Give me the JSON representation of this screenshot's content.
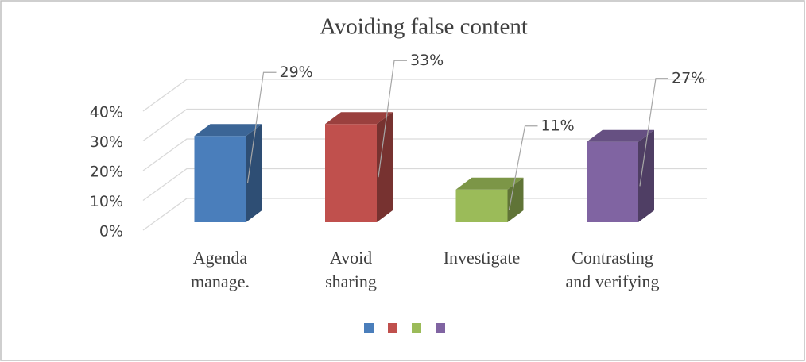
{
  "chart_data": {
    "type": "bar3d",
    "title": "Avoiding false content",
    "categories": [
      "Agenda manage.",
      "Avoid sharing",
      "Investigate",
      "Contrasting and verifying"
    ],
    "values": [
      29,
      33,
      11,
      27
    ],
    "value_labels": [
      "29%",
      "33%",
      "11%",
      "27%"
    ],
    "colors": [
      "#4a7ebb",
      "#c0504d",
      "#9bbb59",
      "#8064a2"
    ],
    "ylim": [
      0,
      40
    ],
    "yticks": [
      {
        "value": 0,
        "label": "0%"
      },
      {
        "value": 10,
        "label": "10%"
      },
      {
        "value": 20,
        "label": "20%"
      },
      {
        "value": 30,
        "label": "30%"
      },
      {
        "value": 40,
        "label": "40%"
      }
    ],
    "grid": true
  }
}
